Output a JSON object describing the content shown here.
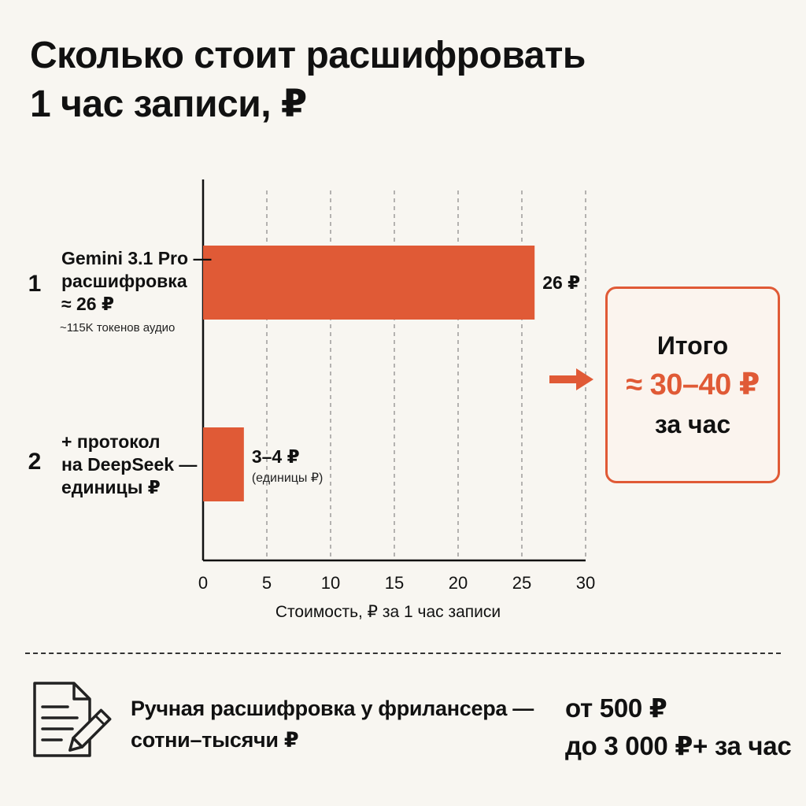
{
  "title": {
    "line1": "Сколько стоит расшифровать",
    "line2": "1 час записи, ₽"
  },
  "chart_data": {
    "type": "bar",
    "orientation": "horizontal",
    "title": "Сколько стоит расшифровать 1 час записи, ₽",
    "xlabel": "Стоимость, ₽ за 1 час записи",
    "ylabel": "",
    "xlim": [
      0,
      30
    ],
    "xticks": [
      0,
      5,
      10,
      15,
      20,
      25,
      30
    ],
    "grid": "vertical dashed",
    "bar_color": "#e05a36",
    "bars": [
      {
        "rank": "1",
        "label_lines": [
          "Gemini 3.1 Pro —",
          "расшифровка",
          "≈ 26 ₽"
        ],
        "sublabel": "~115K токенов аудио",
        "value": 26,
        "value_label": "26 ₽",
        "value_sublabel": ""
      },
      {
        "rank": "2",
        "label_lines": [
          "+ протокол",
          "на DeepSeek —",
          "единицы ₽"
        ],
        "sublabel": "",
        "value": 3.2,
        "value_label": "3–4 ₽",
        "value_sublabel": "(единицы ₽)"
      }
    ]
  },
  "total": {
    "label": "Итого",
    "value": "≈ 30–40 ₽",
    "unit": "за час"
  },
  "manual": {
    "text_line1": "Ручная расшифровка у фрилансера —",
    "text_line2": "сотни–тысячи ₽",
    "price_line1": "от 500 ₽",
    "price_line2": "до 3 000 ₽+ за час"
  },
  "colors": {
    "accent": "#e05a36",
    "background": "#f8f6f1",
    "text": "#111111"
  },
  "icons": [
    "arrow-right-icon",
    "document-pen-icon"
  ]
}
